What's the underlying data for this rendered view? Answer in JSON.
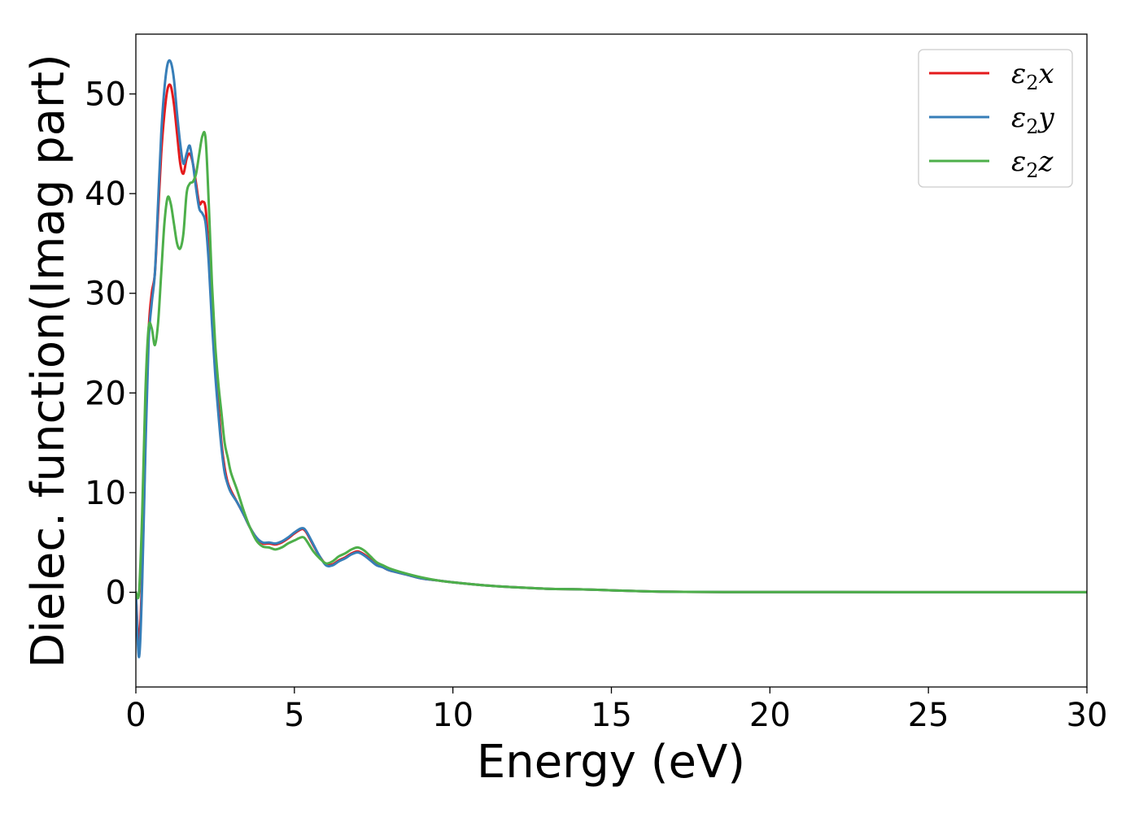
{
  "chart_data": {
    "type": "line",
    "xlabel": "Energy (eV)",
    "ylabel": "Dielec. function(Imag part)",
    "xlim": [
      0,
      30
    ],
    "ylim": [
      -9.5,
      56
    ],
    "xticks": [
      0,
      5,
      10,
      15,
      20,
      25,
      30
    ],
    "yticks": [
      0,
      10,
      20,
      30,
      40,
      50
    ],
    "grid": false,
    "legend_position": "top-right",
    "series": [
      {
        "name": "ε2x",
        "legend_symbol": "ε",
        "legend_sub": "2",
        "legend_suffix": "x",
        "color": "#e41a1c",
        "x": [
          0,
          0.1,
          0.2,
          0.3,
          0.4,
          0.5,
          0.6,
          0.7,
          0.8,
          0.9,
          1.0,
          1.1,
          1.2,
          1.3,
          1.4,
          1.5,
          1.6,
          1.7,
          1.8,
          1.9,
          2.0,
          2.1,
          2.2,
          2.3,
          2.4,
          2.5,
          2.6,
          2.7,
          2.8,
          2.9,
          3.0,
          3.2,
          3.4,
          3.6,
          3.8,
          4.0,
          4.2,
          4.4,
          4.6,
          4.8,
          5.0,
          5.2,
          5.3,
          5.4,
          5.6,
          5.8,
          6.0,
          6.2,
          6.4,
          6.6,
          6.8,
          7.0,
          7.2,
          7.4,
          7.6,
          7.8,
          8.0,
          8.5,
          9.0,
          9.5,
          10,
          11,
          12,
          13,
          14,
          15,
          16,
          17,
          18,
          20,
          22,
          25,
          28,
          30
        ],
        "y": [
          0,
          -5,
          2,
          15,
          26,
          30,
          32,
          38,
          44,
          48,
          50.5,
          50.8,
          49,
          46,
          43,
          42,
          43.5,
          44,
          43,
          41,
          39,
          39.2,
          38.5,
          34,
          28,
          23,
          19,
          15,
          12.5,
          11,
          10.2,
          9,
          7.8,
          6.5,
          5.5,
          4.9,
          4.9,
          4.8,
          5.0,
          5.4,
          5.9,
          6.3,
          6.3,
          5.9,
          4.7,
          3.6,
          2.8,
          2.8,
          3.2,
          3.5,
          3.9,
          4.1,
          3.8,
          3.3,
          2.8,
          2.5,
          2.2,
          1.8,
          1.4,
          1.2,
          1.0,
          0.7,
          0.5,
          0.35,
          0.3,
          0.2,
          0.1,
          0.05,
          0.03,
          0.02,
          0.02,
          0.01,
          0.01,
          0.01
        ]
      },
      {
        "name": "ε2y",
        "legend_symbol": "ε",
        "legend_sub": "2",
        "legend_suffix": "y",
        "color": "#377eb8",
        "x": [
          0,
          0.1,
          0.2,
          0.3,
          0.4,
          0.5,
          0.6,
          0.7,
          0.8,
          0.9,
          1.0,
          1.1,
          1.2,
          1.3,
          1.4,
          1.5,
          1.6,
          1.7,
          1.8,
          1.9,
          2.0,
          2.1,
          2.2,
          2.3,
          2.4,
          2.5,
          2.6,
          2.7,
          2.8,
          2.9,
          3.0,
          3.2,
          3.4,
          3.6,
          3.8,
          4.0,
          4.2,
          4.4,
          4.6,
          4.8,
          5.0,
          5.2,
          5.3,
          5.4,
          5.6,
          5.8,
          6.0,
          6.2,
          6.4,
          6.6,
          6.8,
          7.0,
          7.2,
          7.4,
          7.6,
          7.8,
          8.0,
          8.5,
          9.0,
          9.5,
          10,
          11,
          12,
          13,
          14,
          15,
          16,
          17,
          18,
          20,
          22,
          25,
          28,
          30
        ],
        "y": [
          0,
          -6.5,
          1,
          14,
          25,
          29,
          32,
          39,
          46,
          50.5,
          53,
          53.2,
          51.5,
          48,
          45,
          43,
          44,
          44.8,
          43,
          40.5,
          38.5,
          38,
          37,
          33,
          27,
          22,
          18,
          14.5,
          12,
          10.8,
          10,
          9,
          7.8,
          6.5,
          5.5,
          5.0,
          5.0,
          4.9,
          5.1,
          5.5,
          6.0,
          6.4,
          6.4,
          6.0,
          4.8,
          3.6,
          2.7,
          2.7,
          3.1,
          3.4,
          3.8,
          4.0,
          3.7,
          3.2,
          2.7,
          2.5,
          2.2,
          1.8,
          1.4,
          1.2,
          1.0,
          0.7,
          0.5,
          0.35,
          0.3,
          0.2,
          0.1,
          0.05,
          0.03,
          0.02,
          0.02,
          0.01,
          0.01,
          0.01
        ]
      },
      {
        "name": "ε2z",
        "legend_symbol": "ε",
        "legend_sub": "2",
        "legend_suffix": "z",
        "color": "#4daf4a",
        "x": [
          0,
          0.1,
          0.2,
          0.3,
          0.4,
          0.5,
          0.6,
          0.7,
          0.8,
          0.9,
          1.0,
          1.1,
          1.2,
          1.3,
          1.4,
          1.5,
          1.6,
          1.7,
          1.8,
          1.9,
          2.0,
          2.1,
          2.2,
          2.3,
          2.4,
          2.5,
          2.6,
          2.7,
          2.8,
          2.9,
          3.0,
          3.2,
          3.4,
          3.6,
          3.8,
          4.0,
          4.2,
          4.4,
          4.6,
          4.8,
          5.0,
          5.2,
          5.3,
          5.4,
          5.6,
          5.8,
          6.0,
          6.2,
          6.4,
          6.6,
          6.8,
          7.0,
          7.2,
          7.4,
          7.6,
          7.8,
          8.0,
          8.5,
          9.0,
          9.5,
          10,
          11,
          12,
          13,
          14,
          15,
          16,
          17,
          18,
          20,
          22,
          25,
          28,
          30
        ],
        "y": [
          0,
          0,
          8,
          20,
          26.5,
          26.5,
          24.8,
          27,
          32,
          37,
          39.6,
          39,
          37,
          35,
          34.5,
          36,
          40,
          41,
          41.2,
          42,
          44,
          45.8,
          45.5,
          39,
          31,
          25,
          21,
          18,
          15,
          13.5,
          12,
          10.2,
          8.2,
          6.5,
          5.2,
          4.6,
          4.5,
          4.3,
          4.5,
          4.9,
          5.2,
          5.5,
          5.5,
          5.1,
          4.1,
          3.4,
          2.9,
          3.1,
          3.6,
          3.9,
          4.3,
          4.5,
          4.2,
          3.6,
          3.0,
          2.7,
          2.4,
          1.9,
          1.5,
          1.2,
          1.0,
          0.7,
          0.5,
          0.35,
          0.3,
          0.2,
          0.1,
          0.05,
          0.03,
          0.02,
          0.02,
          0.01,
          0.01,
          0.01
        ]
      }
    ]
  }
}
